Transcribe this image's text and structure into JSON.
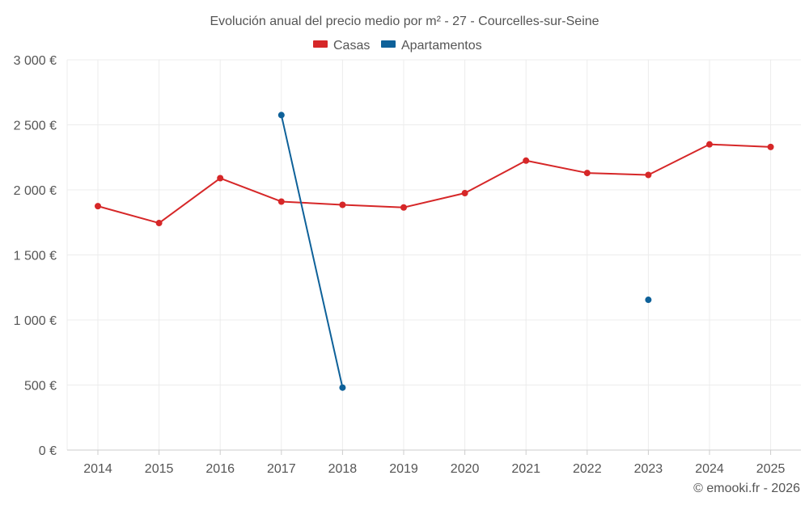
{
  "chart_data": {
    "type": "line",
    "title": "Evolución anual del precio medio por m² - 27 - Courcelles-sur-Seine",
    "categories": [
      "2014",
      "2015",
      "2016",
      "2017",
      "2018",
      "2019",
      "2020",
      "2021",
      "2022",
      "2023",
      "2024",
      "2025"
    ],
    "y_ticks": [
      "0 €",
      "500 €",
      "1 000 €",
      "1 500 €",
      "2 000 €",
      "2 500 €",
      "3 000 €"
    ],
    "ylim": [
      0,
      3000
    ],
    "grid": true,
    "legend_position": "top-center",
    "series": [
      {
        "name": "Casas",
        "color": "#d62728",
        "values": [
          1875,
          1745,
          2090,
          1910,
          1885,
          1865,
          1975,
          2225,
          2130,
          2115,
          2350,
          2330
        ]
      },
      {
        "name": "Apartamentos",
        "color": "#0e6199",
        "values": [
          null,
          null,
          null,
          2575,
          480,
          null,
          null,
          null,
          null,
          1155,
          null,
          null
        ]
      }
    ]
  },
  "credit": "© emooki.fr - 2026"
}
